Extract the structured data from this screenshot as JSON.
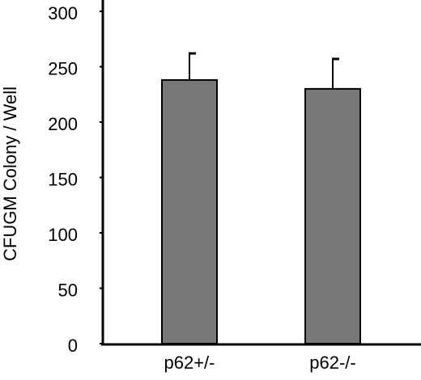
{
  "chart_data": {
    "type": "bar",
    "y_label": "CFUGM Colony / Well",
    "categories": [
      "p62+/-",
      "p62-/-"
    ],
    "values": [
      238,
      230
    ],
    "errors": [
      24,
      27
    ],
    "color": "#777777",
    "ylim": [
      0,
      300
    ],
    "yticks": [
      0,
      50,
      100,
      150,
      200,
      250,
      300
    ]
  }
}
